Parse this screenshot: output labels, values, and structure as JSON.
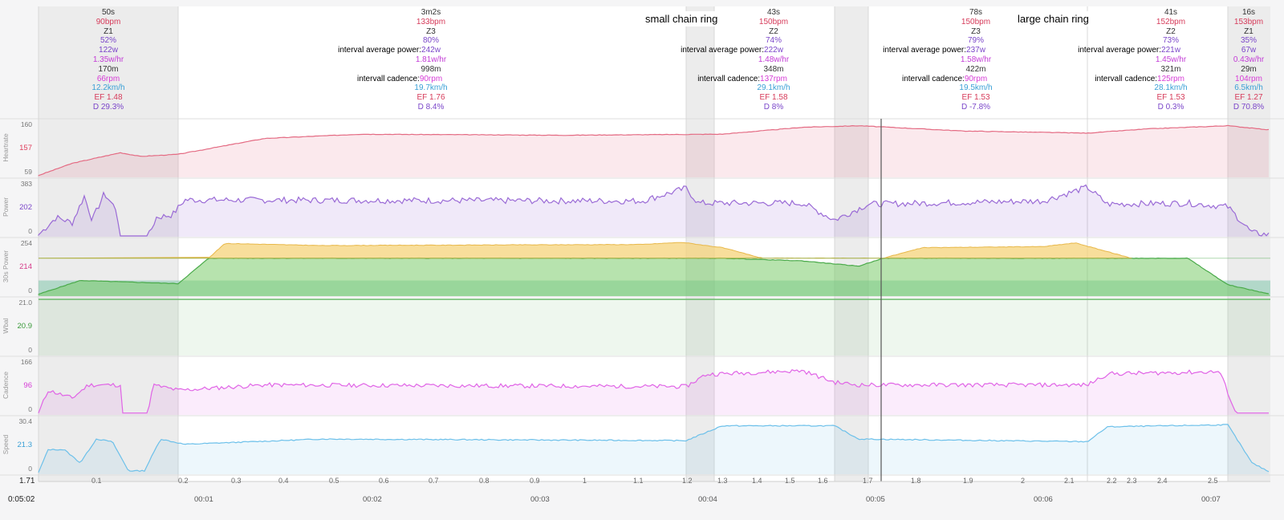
{
  "intervals": [
    {
      "lines": [
        "50s",
        "90bpm",
        "Z1",
        "52%",
        "122w",
        "1.35w/hr",
        "170m",
        "66rpm",
        "12.2km/h",
        "EF 1.48",
        "D 29.3%"
      ],
      "keys": {}
    },
    {
      "lines": [
        "3m2s",
        "133bpm",
        "Z3",
        "80%",
        "242w",
        "1.81w/hr",
        "998m",
        "90rpm",
        "19.7km/h",
        "EF 1.76",
        "D 8.4%"
      ],
      "keys": {
        "4": "interval average power:",
        "7": "intervall cadence:"
      }
    },
    {
      "lines": [
        "43s",
        "150bpm",
        "Z2",
        "74%",
        "222w",
        "1.48w/hr",
        "348m",
        "137rpm",
        "29.1km/h",
        "EF 1.58",
        "D 8%"
      ],
      "keys": {
        "4": "interval average power:",
        "7": "intervall cadence:"
      }
    },
    {
      "lines": [
        "78s",
        "150bpm",
        "Z3",
        "79%",
        "237w",
        "1.58w/hr",
        "422m",
        "90rpm",
        "19.5km/h",
        "EF 1.53",
        "D -7.8%"
      ],
      "keys": {
        "4": "interval average power:",
        "7": "intervall cadence:"
      }
    },
    {
      "lines": [
        "41s",
        "152bpm",
        "Z2",
        "73%",
        "221w",
        "1.45w/hr",
        "321m",
        "125rpm",
        "28.1km/h",
        "EF 1.53",
        "D 0.3%"
      ],
      "keys": {
        "4": "interval average power:",
        "7": "intervall cadence:"
      }
    },
    {
      "lines": [
        "16s",
        "153bpm",
        "Z1",
        "35%",
        "67w",
        "0.43w/hr",
        "29m",
        "104rpm",
        "6.5km/h",
        "EF 1.27",
        "D 70.8%"
      ],
      "keys": {}
    }
  ],
  "annotations": {
    "small_chain": "small chain ring",
    "large_chain": "large chain ring"
  },
  "rows": [
    {
      "name": "Heartrate",
      "max": "160",
      "cur": "157",
      "min": "59",
      "cur_color": "#e0405f"
    },
    {
      "name": "Power",
      "max": "383",
      "cur": "202",
      "min": "0",
      "cur_color": "#7a45c9"
    },
    {
      "name": "30s Power",
      "max": "254",
      "cur": "214",
      "min": "0",
      "cur_color": "#d63b8a"
    },
    {
      "name": "Wbal",
      "max": "21.0",
      "cur": "20.9",
      "min": "0",
      "cur_color": "#3a9a3a"
    },
    {
      "name": "Cadence",
      "max": "166",
      "cur": "96",
      "min": "0",
      "cur_color": "#d63bd6"
    },
    {
      "name": "Speed",
      "max": "30.4",
      "cur": "21.3",
      "min": "0",
      "cur_color": "#3aa0d6"
    }
  ],
  "distance_start": "1.71",
  "distance_ticks": [
    "0.1",
    "0.2",
    "0.3",
    "0.4",
    "0.5",
    "0.6",
    "0.7",
    "0.8",
    "0.9",
    "1",
    "1.1",
    "1.2",
    "1.3",
    "1.4",
    "1.5",
    "1.6",
    "1.7",
    "1.8",
    "1.9",
    "2",
    "2.1",
    "2.2",
    "2.3",
    "2.4",
    "2.5"
  ],
  "total_time": "0:05:02",
  "time_ticks": [
    "00:01",
    "00:02",
    "00:03",
    "00:04",
    "00:05",
    "00:06",
    "00:07"
  ],
  "colors": {
    "heartrate": "#e46b83",
    "power": "#9a6ad6",
    "cadence": "#e064e6",
    "speed": "#6cc0ea",
    "power30_yellow": "#f5d37a",
    "power30_green": "#7ccc6c",
    "power30_teal": "#6cc0a0",
    "wbal": "#8cca8c"
  }
}
